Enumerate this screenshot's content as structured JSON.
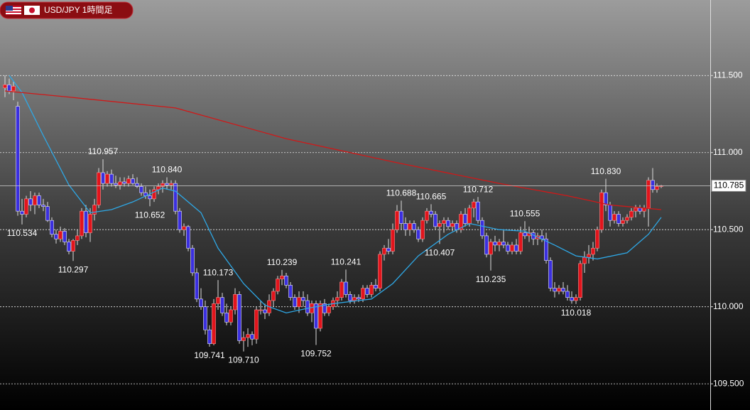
{
  "chart_data": {
    "type": "candlestick",
    "title": "USD/JPY 1時間足",
    "ylim": [
      109.33,
      111.99
    ],
    "yticks": [
      {
        "value": 111.5,
        "label": "111.500"
      },
      {
        "value": 111,
        "label": "111.000"
      },
      {
        "value": 110.5,
        "label": "110.500"
      },
      {
        "value": 110,
        "label": "110.000"
      },
      {
        "value": 109.5,
        "label": "109.500"
      }
    ],
    "grid": true,
    "up_color": "#e3141c",
    "down_color": "#3b2fe0",
    "current_price": 110.785,
    "candles": [
      [
        111.42,
        111.5,
        111.36,
        111.44
      ],
      [
        111.44,
        111.48,
        111.38,
        111.4
      ],
      [
        111.4,
        111.46,
        111.34,
        111.43
      ],
      [
        111.3,
        111.33,
        110.59,
        110.62
      ],
      [
        110.62,
        110.7,
        110.534,
        110.6
      ],
      [
        110.6,
        110.72,
        110.58,
        110.7
      ],
      [
        110.7,
        110.75,
        110.62,
        110.66
      ],
      [
        110.66,
        110.74,
        110.6,
        110.72
      ],
      [
        110.72,
        110.74,
        110.64,
        110.66
      ],
      [
        110.66,
        110.7,
        110.62,
        110.65
      ],
      [
        110.65,
        110.68,
        110.55,
        110.56
      ],
      [
        110.56,
        110.58,
        110.45,
        110.47
      ],
      [
        110.47,
        110.5,
        110.41,
        110.44
      ],
      [
        110.44,
        110.52,
        110.42,
        110.49
      ],
      [
        110.49,
        110.51,
        110.4,
        110.42
      ],
      [
        110.42,
        110.44,
        110.34,
        110.36
      ],
      [
        110.36,
        110.44,
        110.297,
        110.43
      ],
      [
        110.43,
        110.5,
        110.4,
        110.46
      ],
      [
        110.46,
        110.64,
        110.44,
        110.62
      ],
      [
        110.62,
        110.66,
        110.45,
        110.48
      ],
      [
        110.48,
        110.64,
        110.42,
        110.6
      ],
      [
        110.6,
        110.7,
        110.56,
        110.66
      ],
      [
        110.66,
        110.9,
        110.64,
        110.87
      ],
      [
        110.87,
        110.957,
        110.76,
        110.8
      ],
      [
        110.8,
        110.88,
        110.78,
        110.86
      ],
      [
        110.86,
        110.89,
        110.78,
        110.8
      ],
      [
        110.8,
        110.85,
        110.77,
        110.79
      ],
      [
        110.79,
        110.84,
        110.76,
        110.81
      ],
      [
        110.81,
        110.84,
        110.78,
        110.8
      ],
      [
        110.8,
        110.85,
        110.78,
        110.83
      ],
      [
        110.83,
        110.86,
        110.79,
        110.8
      ],
      [
        110.8,
        110.84,
        110.77,
        110.78
      ],
      [
        110.78,
        110.8,
        110.72,
        110.74
      ],
      [
        110.74,
        110.78,
        110.7,
        110.72
      ],
      [
        110.72,
        110.76,
        110.652,
        110.7
      ],
      [
        110.7,
        110.78,
        110.68,
        110.76
      ],
      [
        110.76,
        110.8,
        110.73,
        110.78
      ],
      [
        110.78,
        110.82,
        110.74,
        110.8
      ],
      [
        110.8,
        110.84,
        110.76,
        110.79
      ],
      [
        110.79,
        110.82,
        110.76,
        110.8
      ],
      [
        110.8,
        110.82,
        110.6,
        110.62
      ],
      [
        110.62,
        110.64,
        110.48,
        110.5
      ],
      [
        110.5,
        110.54,
        110.46,
        110.52
      ],
      [
        110.52,
        110.53,
        110.36,
        110.38
      ],
      [
        110.38,
        110.4,
        110.2,
        110.22
      ],
      [
        110.22,
        110.25,
        110.03,
        110.05
      ],
      [
        110.05,
        110.12,
        109.98,
        110.0
      ],
      [
        110.0,
        110.04,
        109.82,
        109.85
      ],
      [
        109.85,
        109.88,
        109.741,
        109.76
      ],
      [
        109.76,
        110.05,
        109.75,
        110.02
      ],
      [
        110.02,
        110.173,
        109.98,
        110.06
      ],
      [
        110.06,
        110.09,
        109.94,
        109.96
      ],
      [
        109.96,
        110.02,
        109.88,
        109.9
      ],
      [
        109.9,
        110.0,
        109.88,
        109.98
      ],
      [
        109.98,
        110.12,
        109.95,
        110.08
      ],
      [
        110.08,
        110.1,
        109.76,
        109.78
      ],
      [
        109.78,
        109.84,
        109.71,
        109.8
      ],
      [
        109.8,
        109.86,
        109.74,
        109.82
      ],
      [
        109.82,
        109.84,
        109.75,
        109.79
      ],
      [
        109.79,
        110.0,
        109.76,
        109.98
      ],
      [
        109.98,
        110.04,
        109.95,
        109.98
      ],
      [
        109.98,
        110.02,
        109.92,
        109.96
      ],
      [
        109.96,
        110.08,
        109.94,
        110.04
      ],
      [
        110.04,
        110.12,
        110.0,
        110.1
      ],
      [
        110.1,
        110.2,
        110.08,
        110.18
      ],
      [
        110.18,
        110.239,
        110.14,
        110.2
      ],
      [
        110.2,
        110.22,
        110.12,
        110.14
      ],
      [
        110.14,
        110.16,
        110.04,
        110.06
      ],
      [
        110.06,
        110.08,
        109.98,
        110.0
      ],
      [
        110.0,
        110.1,
        109.96,
        110.06
      ],
      [
        110.06,
        110.1,
        110.0,
        110.04
      ],
      [
        110.04,
        110.08,
        109.94,
        109.96
      ],
      [
        109.96,
        110.04,
        109.9,
        110.02
      ],
      [
        110.02,
        110.04,
        109.752,
        109.86
      ],
      [
        109.86,
        110.04,
        109.84,
        110.02
      ],
      [
        110.02,
        110.05,
        109.94,
        109.96
      ],
      [
        109.96,
        110.02,
        109.94,
        110.0
      ],
      [
        110.0,
        110.06,
        109.98,
        110.04
      ],
      [
        110.04,
        110.1,
        110.0,
        110.06
      ],
      [
        110.06,
        110.18,
        110.04,
        110.16
      ],
      [
        110.16,
        110.241,
        110.06,
        110.08
      ],
      [
        110.08,
        110.1,
        110.02,
        110.04
      ],
      [
        110.04,
        110.08,
        110.02,
        110.06
      ],
      [
        110.06,
        110.08,
        110.03,
        110.05
      ],
      [
        110.05,
        110.14,
        110.03,
        110.12
      ],
      [
        110.12,
        110.14,
        110.06,
        110.08
      ],
      [
        110.08,
        110.16,
        110.06,
        110.14
      ],
      [
        110.14,
        110.18,
        110.1,
        110.12
      ],
      [
        110.12,
        110.36,
        110.1,
        110.34
      ],
      [
        110.34,
        110.4,
        110.3,
        110.38
      ],
      [
        110.38,
        110.44,
        110.34,
        110.36
      ],
      [
        110.36,
        110.54,
        110.34,
        110.5
      ],
      [
        110.5,
        110.66,
        110.48,
        110.62
      ],
      [
        110.62,
        110.688,
        110.5,
        110.54
      ],
      [
        110.54,
        110.58,
        110.46,
        110.5
      ],
      [
        110.5,
        110.56,
        110.46,
        110.54
      ],
      [
        110.54,
        110.56,
        110.48,
        110.5
      ],
      [
        110.5,
        110.52,
        110.42,
        110.44
      ],
      [
        110.44,
        110.58,
        110.42,
        110.56
      ],
      [
        110.56,
        110.64,
        110.54,
        110.62
      ],
      [
        110.62,
        110.665,
        110.58,
        110.6
      ],
      [
        110.6,
        110.62,
        110.5,
        110.52
      ],
      [
        110.52,
        110.56,
        110.407,
        110.54
      ],
      [
        110.54,
        110.58,
        110.48,
        110.56
      ],
      [
        110.56,
        110.58,
        110.5,
        110.52
      ],
      [
        110.52,
        110.56,
        110.49,
        110.54
      ],
      [
        110.54,
        110.56,
        110.48,
        110.5
      ],
      [
        110.5,
        110.62,
        110.48,
        110.6
      ],
      [
        110.6,
        110.64,
        110.52,
        110.54
      ],
      [
        110.54,
        110.66,
        110.52,
        110.64
      ],
      [
        110.64,
        110.7,
        110.58,
        110.68
      ],
      [
        110.68,
        110.712,
        110.54,
        110.56
      ],
      [
        110.56,
        110.58,
        110.44,
        110.46
      ],
      [
        110.46,
        110.48,
        110.32,
        110.34
      ],
      [
        110.34,
        110.44,
        110.235,
        110.42
      ],
      [
        110.42,
        110.46,
        110.36,
        110.4
      ],
      [
        110.4,
        110.44,
        110.36,
        110.42
      ],
      [
        110.42,
        110.5,
        110.38,
        110.4
      ],
      [
        110.4,
        110.42,
        110.34,
        110.36
      ],
      [
        110.36,
        110.42,
        110.34,
        110.4
      ],
      [
        110.4,
        110.44,
        110.34,
        110.36
      ],
      [
        110.36,
        110.52,
        110.34,
        110.48
      ],
      [
        110.48,
        110.555,
        110.44,
        110.46
      ],
      [
        110.46,
        110.52,
        110.42,
        110.48
      ],
      [
        110.48,
        110.5,
        110.4,
        110.44
      ],
      [
        110.44,
        110.48,
        110.4,
        110.46
      ],
      [
        110.46,
        110.5,
        110.42,
        110.44
      ],
      [
        110.44,
        110.48,
        110.28,
        110.3
      ],
      [
        110.3,
        110.32,
        110.1,
        110.12
      ],
      [
        110.12,
        110.16,
        110.06,
        110.1
      ],
      [
        110.1,
        110.14,
        110.08,
        110.12
      ],
      [
        110.12,
        110.16,
        110.08,
        110.1
      ],
      [
        110.1,
        110.14,
        110.04,
        110.06
      ],
      [
        110.06,
        110.1,
        110.02,
        110.04
      ],
      [
        110.04,
        110.08,
        110.018,
        110.06
      ],
      [
        110.06,
        110.3,
        110.04,
        110.28
      ],
      [
        110.28,
        110.36,
        110.22,
        110.32
      ],
      [
        110.32,
        110.4,
        110.28,
        110.34
      ],
      [
        110.34,
        110.42,
        110.3,
        110.38
      ],
      [
        110.38,
        110.52,
        110.36,
        110.5
      ],
      [
        110.5,
        110.76,
        110.48,
        110.74
      ],
      [
        110.74,
        110.83,
        110.62,
        110.66
      ],
      [
        110.66,
        110.68,
        110.52,
        110.56
      ],
      [
        110.56,
        110.62,
        110.54,
        110.6
      ],
      [
        110.6,
        110.62,
        110.52,
        110.54
      ],
      [
        110.54,
        110.58,
        110.52,
        110.56
      ],
      [
        110.56,
        110.6,
        110.54,
        110.58
      ],
      [
        110.58,
        110.64,
        110.56,
        110.62
      ],
      [
        110.62,
        110.66,
        110.58,
        110.64
      ],
      [
        110.64,
        110.66,
        110.6,
        110.62
      ],
      [
        110.62,
        110.66,
        110.58,
        110.64
      ],
      [
        110.64,
        110.84,
        110.52,
        110.82
      ],
      [
        110.82,
        110.9,
        110.74,
        110.76
      ],
      [
        110.76,
        110.8,
        110.74,
        110.78
      ],
      [
        110.78,
        110.79,
        110.77,
        110.785
      ]
    ],
    "lines": [
      {
        "color": "#2ea8e6",
        "x": [
          1,
          4,
          9,
          15,
          20,
          25,
          30,
          37,
          40,
          46,
          50,
          56,
          61,
          66,
          71,
          77,
          86,
          91,
          97,
          104,
          109,
          116,
          122,
          129,
          134,
          139,
          146,
          151,
          154
        ],
        "values": [
          111.5,
          111.39,
          111.11,
          110.79,
          110.61,
          110.63,
          110.68,
          110.77,
          110.75,
          110.61,
          110.38,
          110.15,
          110.01,
          109.96,
          109.99,
          110.02,
          110.05,
          110.15,
          110.33,
          110.47,
          110.54,
          110.5,
          110.49,
          110.4,
          110.33,
          110.31,
          110.35,
          110.47,
          110.58
        ]
      },
      {
        "color": "#d01818",
        "x": [
          0,
          15,
          40,
          66,
          91,
          116,
          132,
          142,
          154
        ],
        "values": [
          111.4,
          111.36,
          111.29,
          111.09,
          110.94,
          110.8,
          110.72,
          110.66,
          110.63
        ]
      }
    ],
    "annotations": [
      {
        "candle": 23,
        "value": 110.957
      },
      {
        "candle": 38,
        "value": 110.84,
        "label": "110.840"
      },
      {
        "candle": 4,
        "value": 110.534
      },
      {
        "candle": 16,
        "value": 110.297
      },
      {
        "candle": 34,
        "value": 110.652
      },
      {
        "candle": 50,
        "value": 110.173
      },
      {
        "candle": 48,
        "value": 109.741
      },
      {
        "candle": 56,
        "value": 109.71,
        "label": "109.710"
      },
      {
        "candle": 65,
        "value": 110.239
      },
      {
        "candle": 73,
        "value": 109.752
      },
      {
        "candle": 80,
        "value": 110.241
      },
      {
        "candle": 93,
        "value": 110.688
      },
      {
        "candle": 100,
        "value": 110.665
      },
      {
        "candle": 111,
        "value": 110.712
      },
      {
        "candle": 102,
        "value": 110.407
      },
      {
        "candle": 114,
        "value": 110.235
      },
      {
        "candle": 122,
        "value": 110.555
      },
      {
        "candle": 141,
        "value": 110.83,
        "label": "110.830"
      },
      {
        "candle": 134,
        "value": 110.018
      }
    ]
  }
}
